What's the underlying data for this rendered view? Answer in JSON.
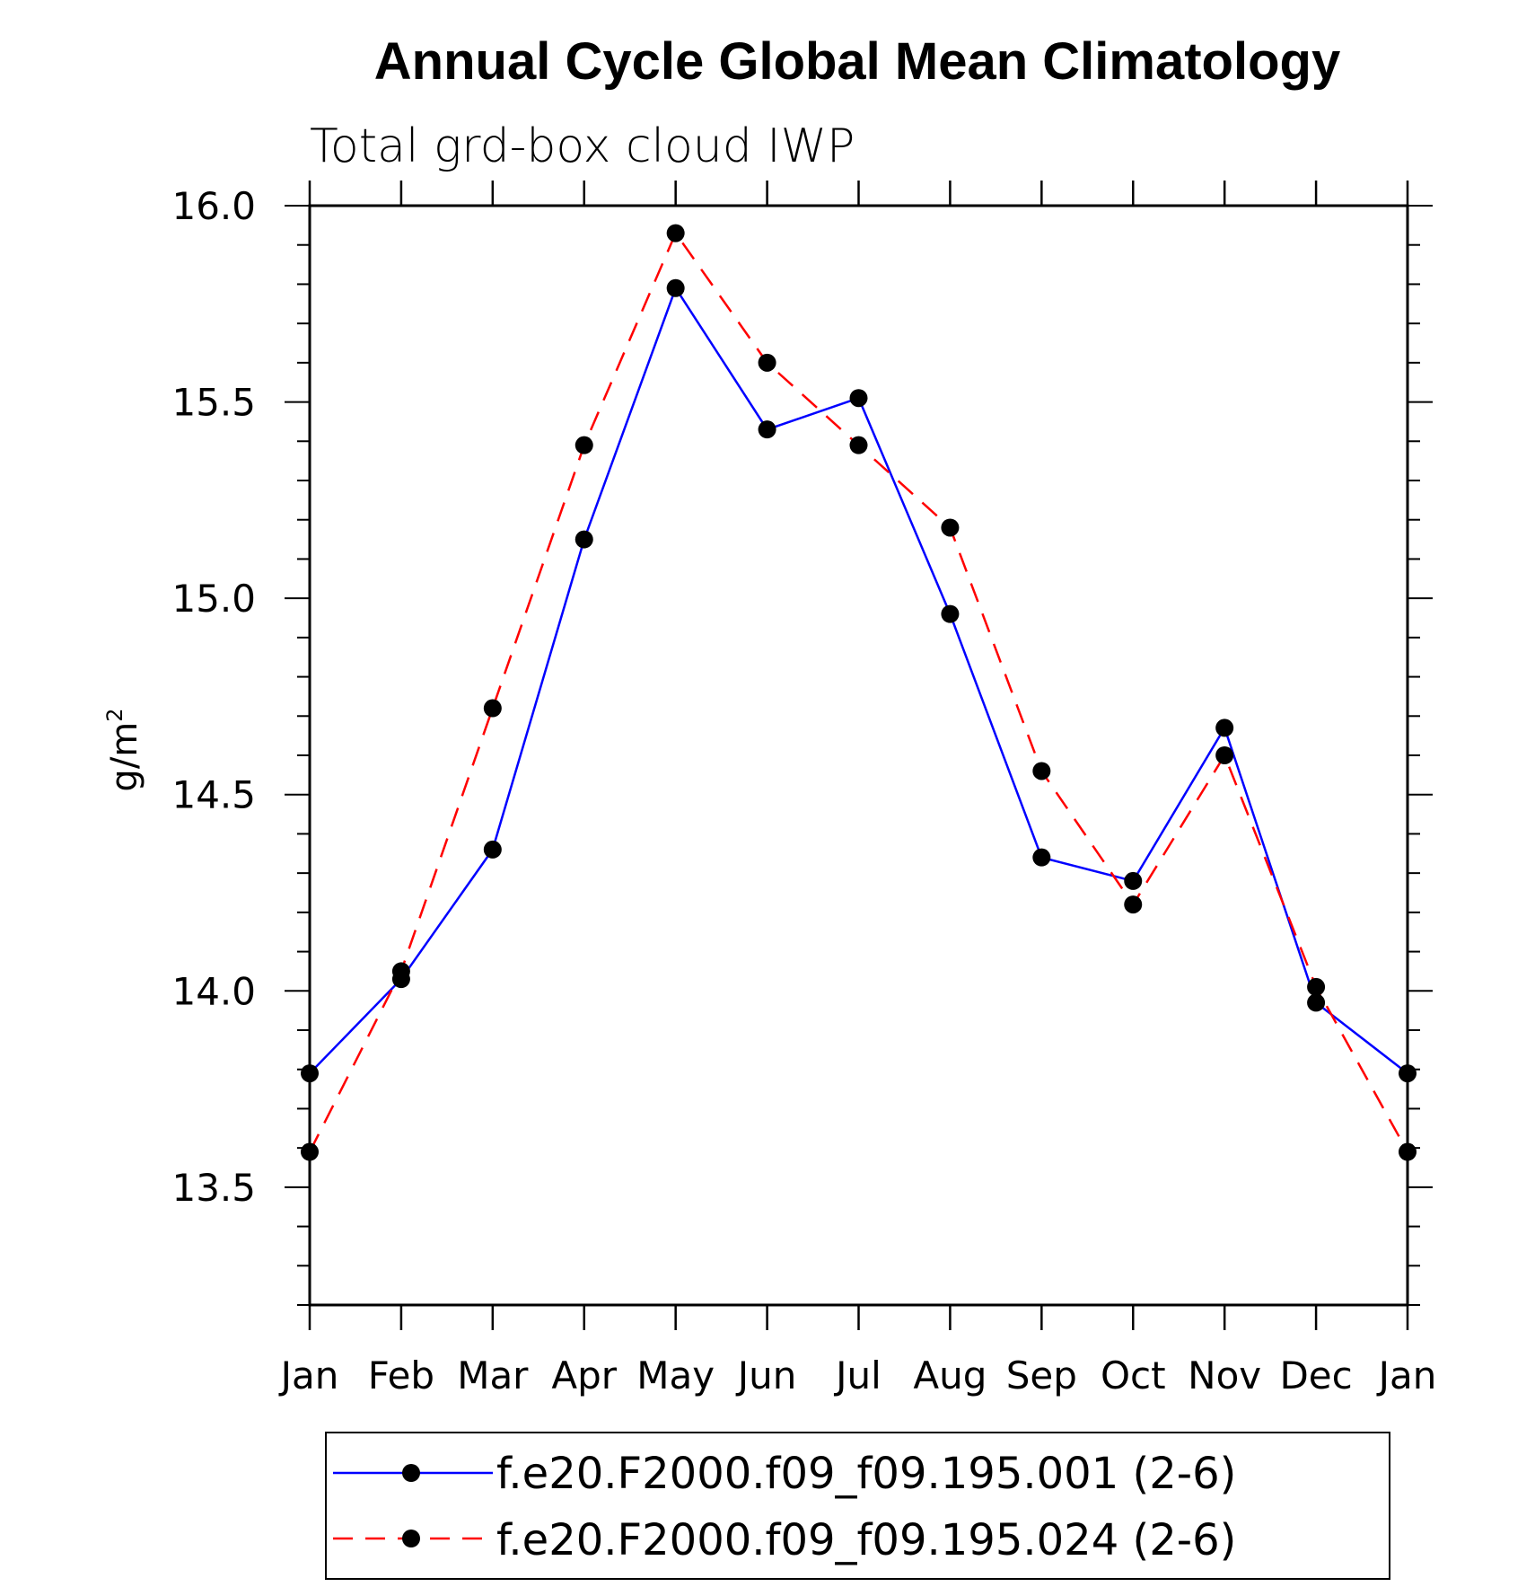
{
  "chart_data": {
    "type": "line",
    "title": "Annual Cycle Global Mean Climatology",
    "subtitle": "Total grd-box cloud IWP",
    "ylabel": "g/m",
    "ylabel_superscript": "2",
    "xlabel": "",
    "categories": [
      "Jan",
      "Feb",
      "Mar",
      "Apr",
      "May",
      "Jun",
      "Jul",
      "Aug",
      "Sep",
      "Oct",
      "Nov",
      "Dec",
      "Jan"
    ],
    "ylim": [
      13.2,
      16.0
    ],
    "yticks": [
      "13.5",
      "14.0",
      "14.5",
      "15.0",
      "15.5",
      "16.0"
    ],
    "grid": false,
    "legend_position": "bottom",
    "series": [
      {
        "name": "f.e20.F2000.f09_f09.195.001 (2-6)",
        "color": "#0000ff",
        "style": "solid",
        "values": [
          13.79,
          14.03,
          14.36,
          15.15,
          15.79,
          15.43,
          15.51,
          14.96,
          14.34,
          14.28,
          14.67,
          13.97,
          13.79
        ]
      },
      {
        "name": "f.e20.F2000.f09_f09.195.024 (2-6)",
        "color": "#ff0000",
        "style": "dashed",
        "values": [
          13.59,
          14.05,
          14.72,
          15.39,
          15.93,
          15.6,
          15.39,
          15.18,
          14.56,
          14.22,
          14.6,
          14.01,
          13.59
        ]
      }
    ]
  }
}
